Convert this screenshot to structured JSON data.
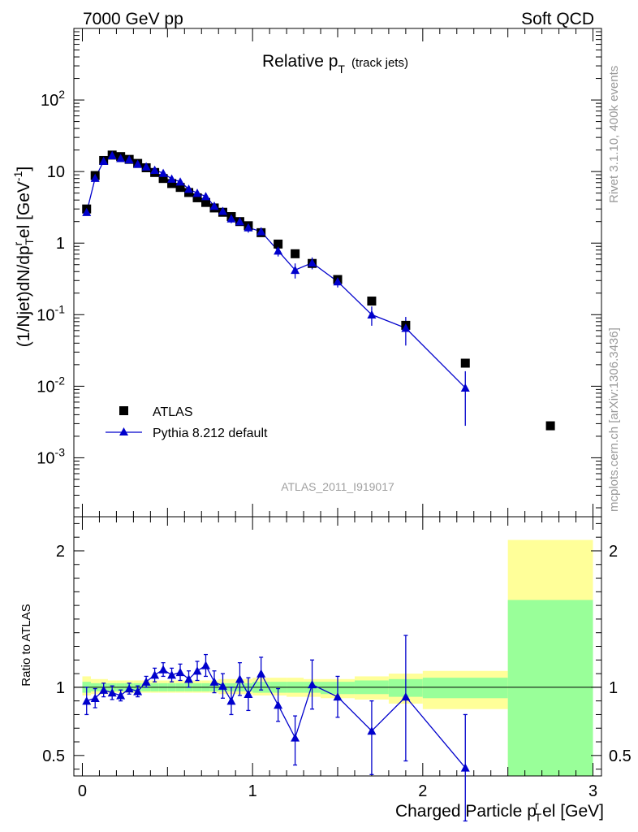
{
  "header": {
    "left": "7000 GeV pp",
    "right": "Soft QCD"
  },
  "side_labels": {
    "rivet": "Rivet 3.1.10,  400k events",
    "mcplots": "mcplots.cern.ch [arXiv:1306.3436]"
  },
  "chart_data": [
    {
      "type": "scatter",
      "panel": "main",
      "title": "Relative p_T (track jets)",
      "title_main": "Relative p",
      "title_sub": "T",
      "title_note": "(track jets)",
      "ylabel": "(1/Njet)dN/dp_T^rel [GeV^-1]",
      "yscale": "log",
      "ylim": [
        0.00015,
        1000
      ],
      "xlim": [
        -0.05,
        3.05
      ],
      "y_ticks": [
        {
          "value": 0.001,
          "base": "10",
          "exp": "-3"
        },
        {
          "value": 0.01,
          "base": "10",
          "exp": "-2"
        },
        {
          "value": 0.1,
          "base": "10",
          "exp": "-1"
        },
        {
          "value": 1,
          "base": "1",
          "exp": ""
        },
        {
          "value": 10,
          "base": "10",
          "exp": ""
        },
        {
          "value": 100,
          "base": "10",
          "exp": "2"
        }
      ],
      "watermark": "ATLAS_2011_I919017",
      "legend": [
        {
          "label": "ATLAS",
          "marker": "square",
          "color": "#000000"
        },
        {
          "label": "Pythia 8.212 default",
          "marker": "triangle",
          "color": "#0000cc"
        }
      ],
      "series": [
        {
          "name": "ATLAS",
          "color": "#000000",
          "x": [
            0.025,
            0.075,
            0.125,
            0.175,
            0.225,
            0.275,
            0.325,
            0.375,
            0.425,
            0.475,
            0.525,
            0.575,
            0.625,
            0.675,
            0.725,
            0.775,
            0.825,
            0.875,
            0.925,
            0.975,
            1.05,
            1.15,
            1.25,
            1.35,
            1.5,
            1.7,
            1.9,
            2.25,
            2.75
          ],
          "y": [
            3.0,
            8.8,
            14.3,
            17.0,
            16.2,
            14.8,
            13.0,
            11.3,
            9.7,
            8.0,
            6.8,
            6.0,
            5.1,
            4.3,
            3.7,
            3.1,
            2.7,
            2.35,
            2.0,
            1.75,
            1.4,
            0.97,
            0.71,
            0.52,
            0.31,
            0.155,
            0.071,
            0.021,
            0.0028
          ]
        },
        {
          "name": "Pythia 8.212 default",
          "color": "#0000cc",
          "x": [
            0.025,
            0.075,
            0.125,
            0.175,
            0.225,
            0.275,
            0.325,
            0.375,
            0.425,
            0.475,
            0.525,
            0.575,
            0.625,
            0.675,
            0.725,
            0.775,
            0.825,
            0.875,
            0.925,
            0.975,
            1.05,
            1.15,
            1.25,
            1.35,
            1.5,
            1.7,
            1.9,
            2.25
          ],
          "y": [
            2.7,
            8.1,
            14.0,
            16.8,
            15.3,
            14.7,
            12.7,
            11.7,
            10.5,
            9.5,
            7.9,
            7.2,
            5.7,
            5.0,
            4.5,
            3.3,
            2.8,
            2.2,
            2.0,
            1.65,
            1.45,
            0.78,
            0.42,
            0.53,
            0.29,
            0.1,
            0.065,
            0.0095
          ],
          "err_low": [
            0.2,
            0.4,
            0.6,
            0.6,
            0.6,
            0.6,
            0.6,
            0.5,
            0.5,
            0.5,
            0.5,
            0.5,
            0.4,
            0.4,
            0.4,
            0.3,
            0.3,
            0.3,
            0.25,
            0.25,
            0.2,
            0.13,
            0.1,
            0.1,
            0.05,
            0.03,
            0.028,
            0.0067
          ],
          "err_high": [
            0.2,
            0.4,
            0.6,
            0.6,
            0.6,
            0.6,
            0.6,
            0.5,
            0.5,
            0.5,
            0.5,
            0.5,
            0.4,
            0.4,
            0.4,
            0.3,
            0.3,
            0.3,
            0.25,
            0.25,
            0.2,
            0.13,
            0.1,
            0.1,
            0.05,
            0.03,
            0.028,
            0.0067
          ]
        }
      ]
    },
    {
      "type": "line",
      "panel": "ratio",
      "ylabel": "Ratio to ATLAS",
      "ylim": [
        0.35,
        2.25
      ],
      "xlim": [
        -0.05,
        3.05
      ],
      "xlabel": "Charged Particle p_T^rel [GeV]",
      "xlabel_main": "Charged Particle p",
      "xlabel_sup": "r",
      "xlabel_sub": "T",
      "xlabel_tail": "el [GeV]",
      "x_ticks": [
        {
          "value": 0,
          "label": "0"
        },
        {
          "value": 1,
          "label": "1"
        },
        {
          "value": 2,
          "label": "2"
        },
        {
          "value": 3,
          "label": "3"
        }
      ],
      "y_ticks": [
        {
          "value": 0.5,
          "label": "0.5"
        },
        {
          "value": 1,
          "label": "1"
        },
        {
          "value": 2,
          "label": "2"
        }
      ],
      "reference": 1,
      "bands": {
        "edges": [
          0.0,
          0.05,
          0.1,
          0.15,
          0.2,
          0.25,
          0.3,
          0.35,
          0.4,
          0.45,
          0.5,
          0.55,
          0.6,
          0.65,
          0.7,
          0.75,
          0.8,
          0.85,
          0.9,
          0.95,
          1.0,
          1.1,
          1.2,
          1.3,
          1.4,
          1.6,
          1.8,
          2.0,
          2.5,
          3.0
        ],
        "yellow_low": [
          0.94,
          0.95,
          0.95,
          0.96,
          0.96,
          0.96,
          0.96,
          0.96,
          0.96,
          0.96,
          0.96,
          0.96,
          0.96,
          0.96,
          0.96,
          0.96,
          0.95,
          0.95,
          0.95,
          0.95,
          0.94,
          0.94,
          0.93,
          0.93,
          0.92,
          0.91,
          0.88,
          0.84,
          0.35
        ],
        "yellow_high": [
          1.08,
          1.06,
          1.06,
          1.05,
          1.05,
          1.05,
          1.05,
          1.05,
          1.05,
          1.05,
          1.05,
          1.05,
          1.05,
          1.05,
          1.05,
          1.05,
          1.06,
          1.06,
          1.06,
          1.06,
          1.07,
          1.07,
          1.07,
          1.06,
          1.06,
          1.08,
          1.1,
          1.12,
          2.08
        ],
        "green_low": [
          0.96,
          0.97,
          0.97,
          0.97,
          0.97,
          0.97,
          0.97,
          0.97,
          0.97,
          0.97,
          0.97,
          0.97,
          0.97,
          0.97,
          0.97,
          0.97,
          0.97,
          0.97,
          0.97,
          0.97,
          0.96,
          0.96,
          0.96,
          0.96,
          0.95,
          0.95,
          0.93,
          0.92,
          0.35
        ],
        "green_high": [
          1.04,
          1.03,
          1.03,
          1.03,
          1.03,
          1.03,
          1.03,
          1.03,
          1.03,
          1.03,
          1.03,
          1.03,
          1.03,
          1.03,
          1.03,
          1.03,
          1.03,
          1.03,
          1.03,
          1.03,
          1.04,
          1.04,
          1.04,
          1.04,
          1.04,
          1.05,
          1.06,
          1.07,
          1.64
        ]
      },
      "series": [
        {
          "name": "Pythia 8.212 default",
          "color": "#0000cc",
          "x": [
            0.025,
            0.075,
            0.125,
            0.175,
            0.225,
            0.275,
            0.325,
            0.375,
            0.425,
            0.475,
            0.525,
            0.575,
            0.625,
            0.675,
            0.725,
            0.775,
            0.825,
            0.875,
            0.925,
            0.975,
            1.05,
            1.15,
            1.25,
            1.35,
            1.5,
            1.7,
            1.9,
            2.25
          ],
          "y": [
            0.9,
            0.92,
            0.98,
            0.96,
            0.94,
            0.99,
            0.97,
            1.04,
            1.09,
            1.13,
            1.09,
            1.11,
            1.06,
            1.12,
            1.16,
            1.04,
            1.01,
            0.9,
            1.06,
            0.95,
            1.1,
            0.87,
            0.63,
            1.02,
            0.93,
            0.68,
            0.93,
            0.41
          ],
          "err_low": [
            0.1,
            0.07,
            0.05,
            0.05,
            0.04,
            0.04,
            0.04,
            0.04,
            0.05,
            0.05,
            0.05,
            0.06,
            0.06,
            0.07,
            0.08,
            0.08,
            0.09,
            0.1,
            0.12,
            0.12,
            0.12,
            0.12,
            0.2,
            0.18,
            0.15,
            0.32,
            0.47,
            0.39
          ],
          "err_high": [
            0.1,
            0.07,
            0.05,
            0.05,
            0.04,
            0.04,
            0.04,
            0.04,
            0.05,
            0.05,
            0.05,
            0.06,
            0.06,
            0.07,
            0.08,
            0.08,
            0.09,
            0.1,
            0.12,
            0.12,
            0.12,
            0.12,
            0.16,
            0.18,
            0.15,
            0.22,
            0.45,
            0.39
          ]
        }
      ]
    }
  ]
}
